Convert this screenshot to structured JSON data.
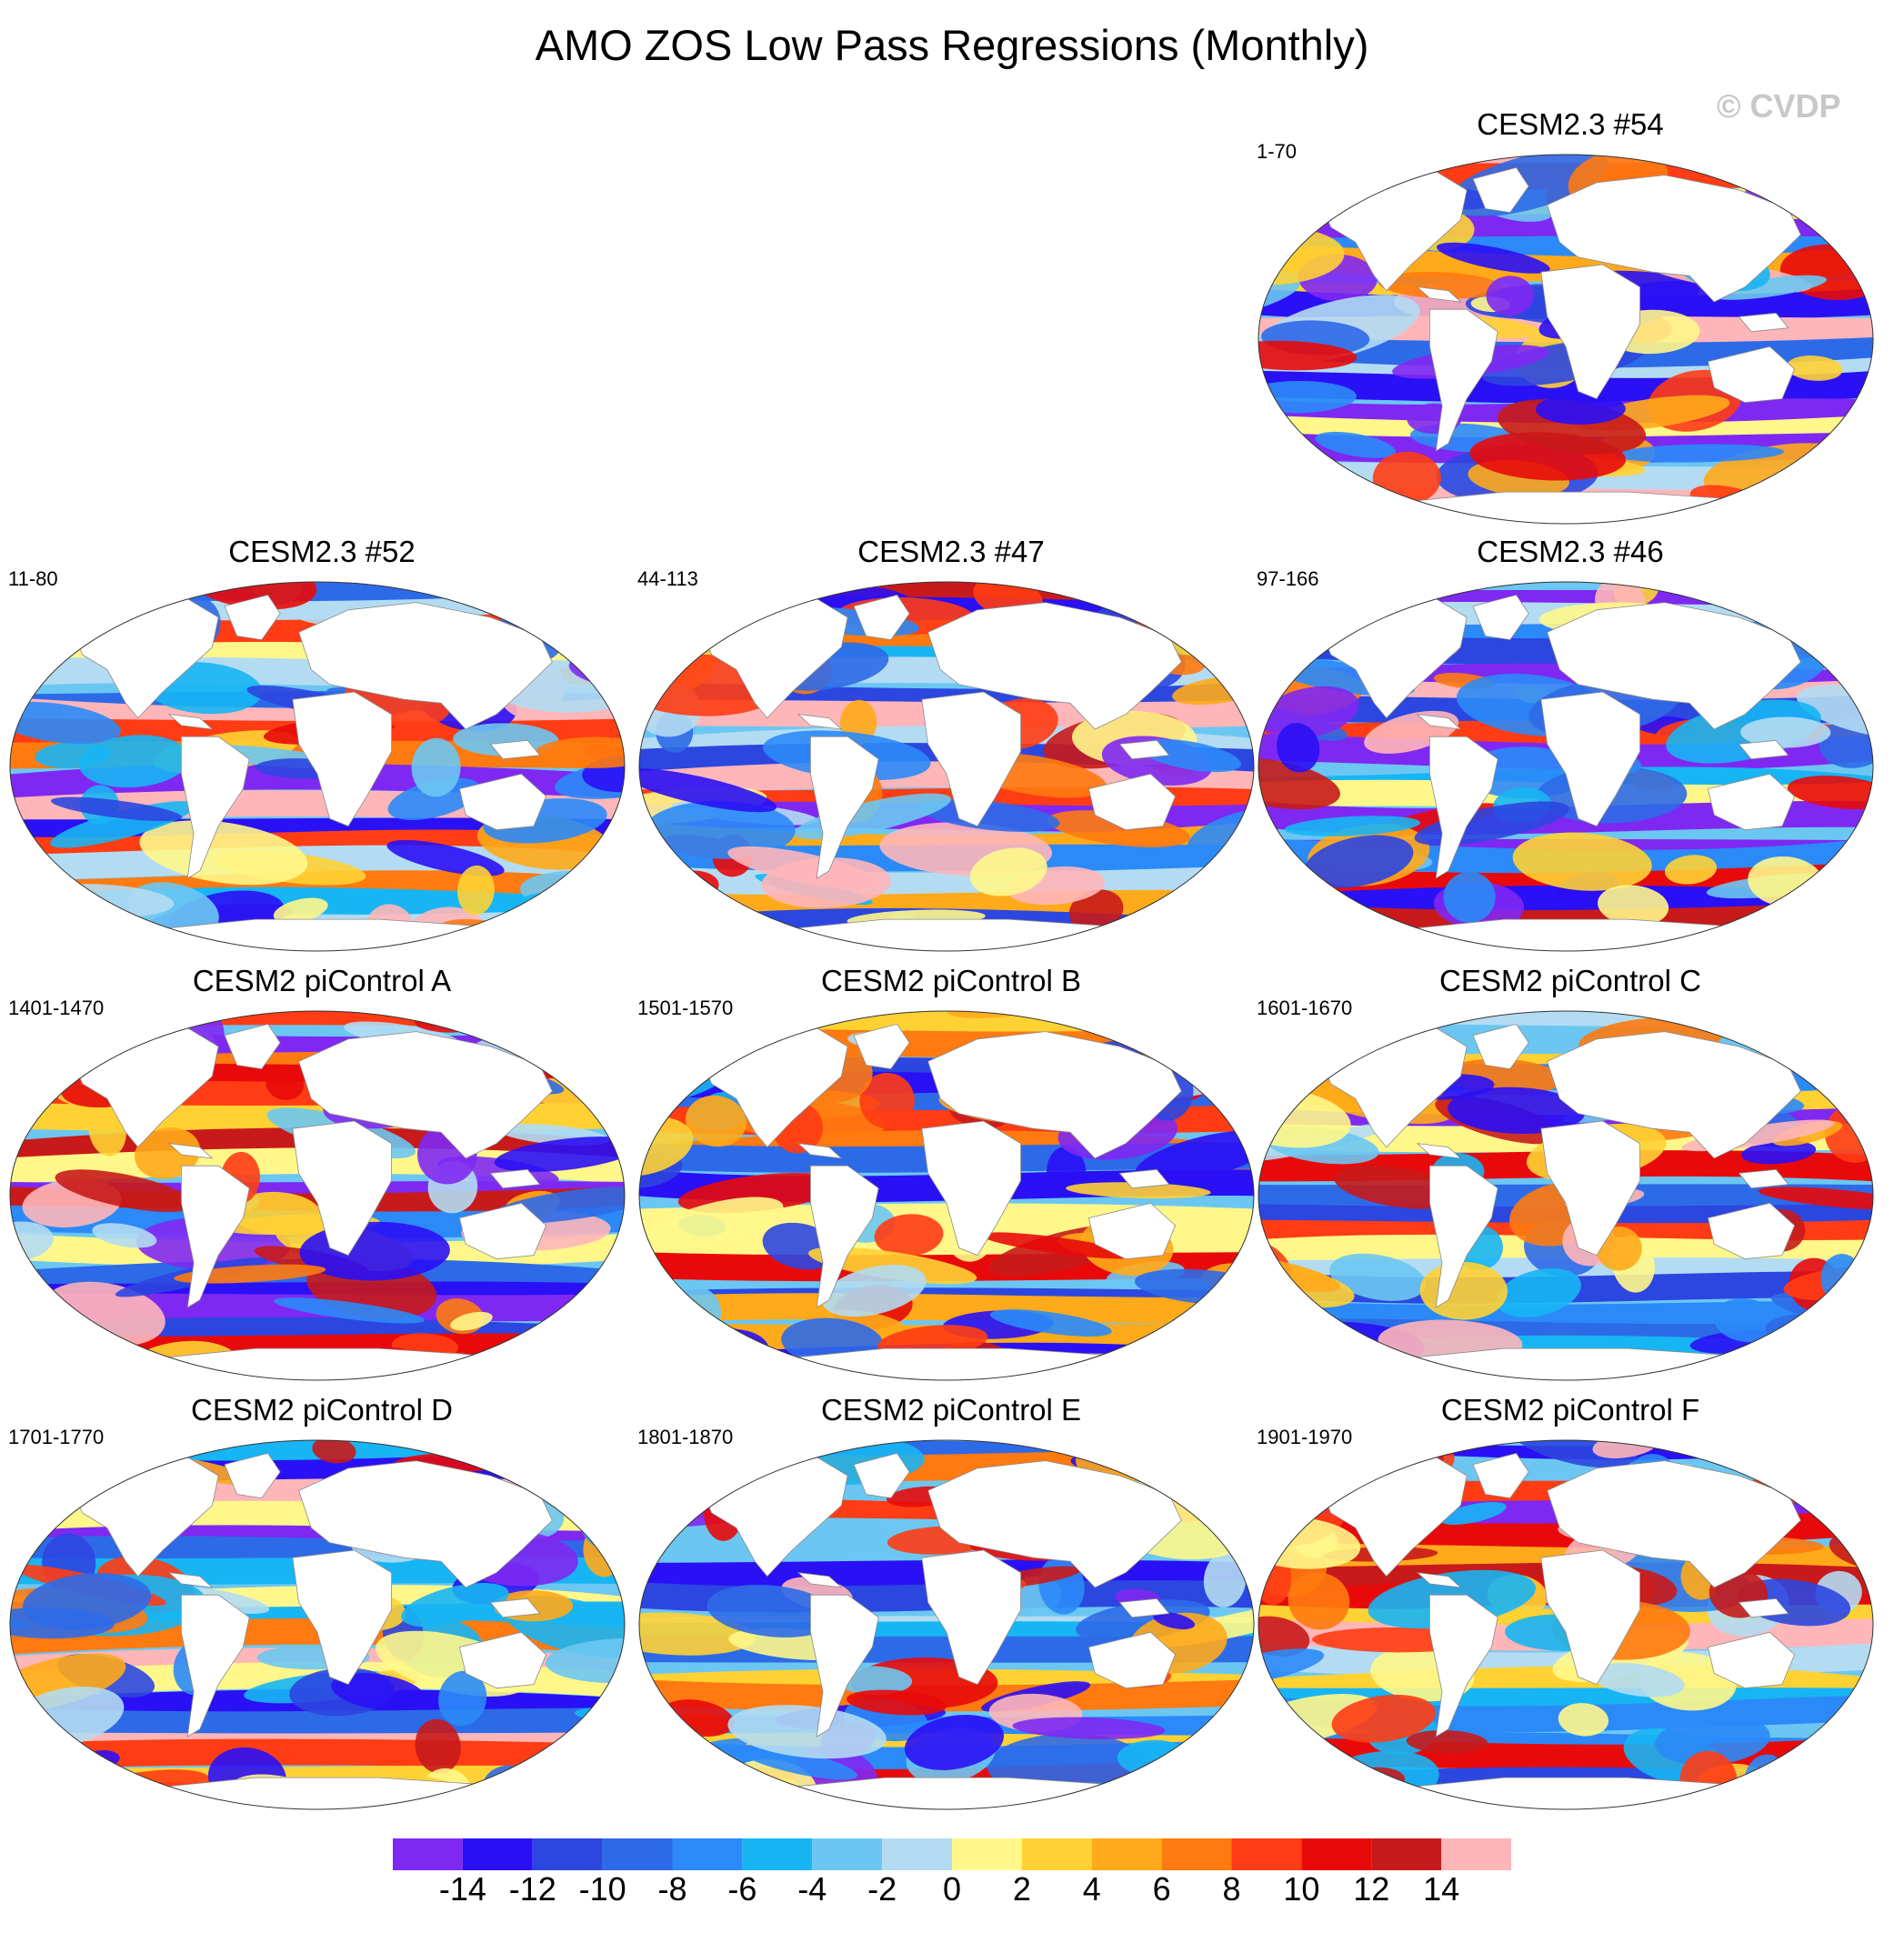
{
  "title": "AMO ZOS Low Pass Regressions (Monthly)",
  "copyright": "© CVDP",
  "panels": [
    {
      "title": "CESM2.3 #54",
      "years": "1-70",
      "seed": 54
    },
    {
      "title": "CESM2.3 #52",
      "years": "11-80",
      "seed": 52
    },
    {
      "title": "CESM2.3 #47",
      "years": "44-113",
      "seed": 47
    },
    {
      "title": "CESM2.3 #46",
      "years": "97-166",
      "seed": 46
    },
    {
      "title": "CESM2 piControl A",
      "years": "1401-1470",
      "seed": 11
    },
    {
      "title": "CESM2 piControl B",
      "years": "1501-1570",
      "seed": 12
    },
    {
      "title": "CESM2 piControl C",
      "years": "1601-1670",
      "seed": 13
    },
    {
      "title": "CESM2 piControl D",
      "years": "1701-1770",
      "seed": 14
    },
    {
      "title": "CESM2 piControl E",
      "years": "1801-1870",
      "seed": 15
    },
    {
      "title": "CESM2 piControl F",
      "years": "1901-1970",
      "seed": 16
    }
  ],
  "colorbar": {
    "colors": [
      "#7f28f2",
      "#2a10f5",
      "#2c46e0",
      "#2d6ae8",
      "#2b8af8",
      "#17b5f4",
      "#6bc7f2",
      "#b3dcf2",
      "#fff78a",
      "#ffd234",
      "#ffaa1a",
      "#ff7a10",
      "#ff3c14",
      "#e80a0a",
      "#c81a1a",
      "#ffb6b9"
    ],
    "labels": [
      "-14",
      "-12",
      "-10",
      "-8",
      "-6",
      "-4",
      "-2",
      "0",
      "2",
      "4",
      "6",
      "8",
      "10",
      "12",
      "14"
    ]
  }
}
